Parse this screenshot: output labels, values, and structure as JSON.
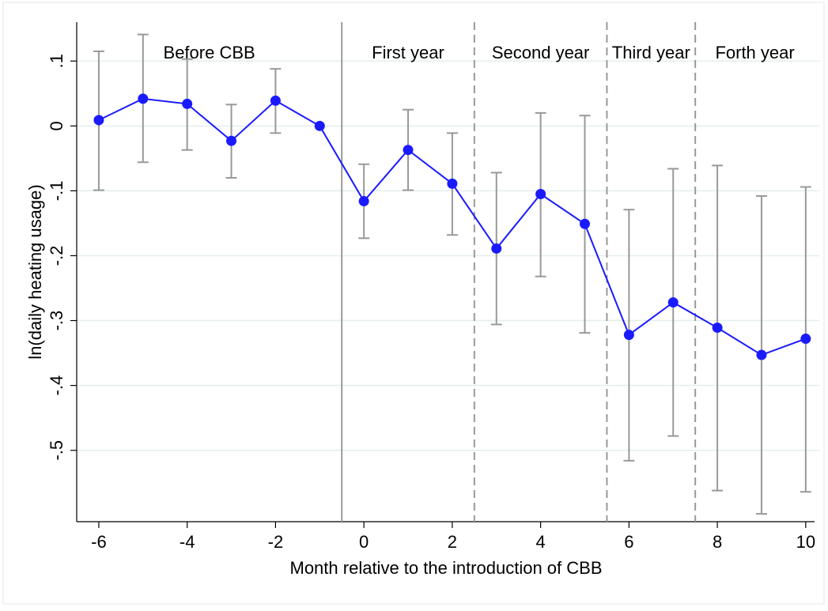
{
  "chart_data": {
    "type": "errorline",
    "x_label": "Month relative to the introduction of CBB",
    "y_label": "ln(daily heating usage)",
    "x": [
      -6,
      -5,
      -4,
      -3,
      -2,
      -1,
      0,
      1,
      2,
      3,
      4,
      5,
      6,
      7,
      8,
      9,
      10
    ],
    "values": [
      0.009,
      0.042,
      0.034,
      -0.023,
      0.039,
      0,
      -0.116,
      -0.037,
      -0.089,
      -0.189,
      -0.105,
      -0.151,
      -0.322,
      -0.272,
      -0.311,
      -0.353,
      -0.328
    ],
    "ci_low": [
      -0.099,
      -0.056,
      -0.037,
      -0.08,
      -0.011,
      null,
      -0.173,
      -0.099,
      -0.168,
      -0.306,
      -0.232,
      -0.319,
      -0.516,
      -0.478,
      -0.562,
      -0.598,
      -0.564
    ],
    "ci_high": [
      0.115,
      0.141,
      0.103,
      0.033,
      0.088,
      null,
      -0.059,
      0.025,
      -0.011,
      -0.072,
      0.02,
      0.016,
      -0.129,
      -0.066,
      -0.061,
      -0.108,
      -0.094
    ],
    "color": "#1a1aff",
    "ci_color": "#999999",
    "xlim": [
      -6.5,
      10.2
    ],
    "ylim": [
      -0.61,
      0.16
    ],
    "xticks": [
      -6,
      -4,
      -2,
      0,
      2,
      4,
      6,
      8,
      10
    ],
    "yticks": [
      {
        "value": 0.1,
        "label": ".1"
      },
      0,
      {
        "value": -0.1,
        "label": "-.1"
      },
      {
        "value": -0.2,
        "label": "-.2"
      },
      {
        "value": -0.3,
        "label": "-.3"
      },
      {
        "value": -0.4,
        "label": "-.4"
      },
      {
        "value": -0.5,
        "label": "-.5"
      }
    ],
    "grid": true,
    "vlines": [
      {
        "x": -0.5,
        "style": "solid"
      },
      {
        "x": 2.5,
        "style": "dashed"
      },
      {
        "x": 5.5,
        "style": "dashed"
      },
      {
        "x": 7.5,
        "style": "dashed"
      }
    ],
    "periods": [
      "Before CBB",
      "First year",
      "Second year",
      "Third year",
      "Forth year"
    ]
  }
}
